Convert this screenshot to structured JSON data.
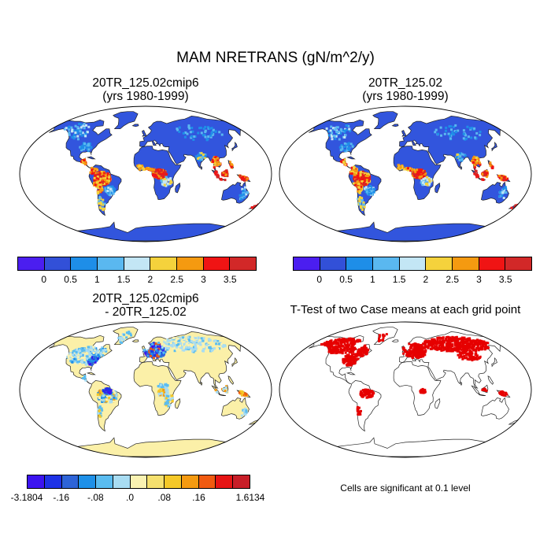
{
  "title": "MAM NRETRANS (gN/m^2/y)",
  "panels": {
    "case1": {
      "title_line1": "20TR_125.02cmip6",
      "title_line2": "(yrs 1980-1999)"
    },
    "case2": {
      "title_line1": "20TR_125.02",
      "title_line2": "(yrs 1980-1999)"
    },
    "diff": {
      "title_line1": "20TR_125.02cmip6",
      "title_line2": "- 20TR_125.02"
    },
    "ttest": {
      "title": "T-Test of two Case means at each grid point",
      "note": "Cells are significant at 0.1 level"
    }
  },
  "colorbars": {
    "abs": {
      "colors": [
        "#4b1ef0",
        "#3250d8",
        "#1e8ee8",
        "#5ab8f0",
        "#c3e6f5",
        "#f5d23c",
        "#f59a10",
        "#f01414",
        "#d22828"
      ],
      "labels": [
        "0",
        "0.5",
        "1",
        "1.5",
        "2",
        "2.5",
        "3",
        "3.5"
      ]
    },
    "diff": {
      "colors": [
        "#3c14f0",
        "#1e32e6",
        "#2e64d8",
        "#1e90e8",
        "#5abcf0",
        "#a8dcf2",
        "#faf2b2",
        "#f5e06e",
        "#f5c828",
        "#f59a10",
        "#f05a10",
        "#e61414",
        "#c81e28"
      ],
      "labels": [
        "-3.1804",
        "-.16",
        "-.08",
        ".0",
        ".08",
        ".16",
        "1.6134"
      ]
    }
  },
  "colors": {
    "land_abs_base": "#3255dd",
    "land_diff_base": "#fbf0a8",
    "significant": "#e60000",
    "coast": "#222222"
  }
}
